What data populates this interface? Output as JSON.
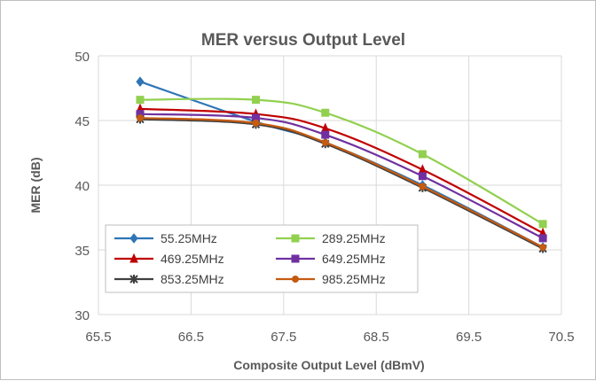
{
  "chart_data": {
    "type": "line",
    "title": "MER versus Output Level",
    "xlabel": "Composite Output Level (dBmV)",
    "ylabel": "MER (dB)",
    "xlim": [
      65.5,
      70.5
    ],
    "ylim": [
      30,
      50
    ],
    "x_ticks": [
      65.5,
      66.5,
      67.5,
      68.5,
      69.5,
      70.5
    ],
    "y_ticks": [
      30,
      35,
      40,
      45,
      50
    ],
    "x_tick_labels": [
      "65.5",
      "66.5",
      "67.5",
      "68.5",
      "69.5",
      "70.5"
    ],
    "y_tick_labels": [
      "30",
      "35",
      "40",
      "45",
      "50"
    ],
    "grid": true,
    "legend_position": "bottom-left",
    "x": [
      65.95,
      67.2,
      67.95,
      69.0,
      70.3
    ],
    "series": [
      {
        "name": "55.25MHz",
        "color": "#2e75b6",
        "marker": "diamond",
        "values": [
          48.0,
          44.9,
          43.3,
          40.0,
          35.2
        ]
      },
      {
        "name": "289.25MHz",
        "color": "#92d050",
        "marker": "square",
        "values": [
          46.6,
          46.6,
          45.6,
          42.4,
          37.0
        ]
      },
      {
        "name": "469.25MHz",
        "color": "#c00000",
        "marker": "triangle",
        "values": [
          45.9,
          45.5,
          44.4,
          41.2,
          36.3
        ]
      },
      {
        "name": "649.25MHz",
        "color": "#7030a0",
        "marker": "square",
        "values": [
          45.5,
          45.2,
          43.9,
          40.7,
          35.9
        ]
      },
      {
        "name": "853.25MHz",
        "color": "#404040",
        "marker": "star",
        "values": [
          45.1,
          44.7,
          43.2,
          39.8,
          35.1
        ]
      },
      {
        "name": "985.25MHz",
        "color": "#c55a11",
        "marker": "circle",
        "values": [
          45.2,
          44.8,
          43.3,
          39.9,
          35.2
        ]
      }
    ]
  }
}
